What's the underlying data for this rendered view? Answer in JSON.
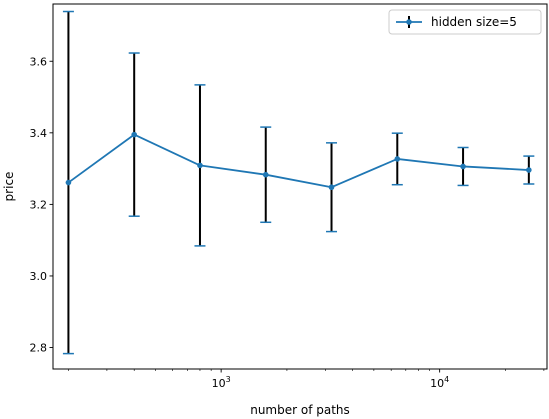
{
  "chart_data": {
    "type": "line",
    "x_scale": "log",
    "xlabel": "number of paths",
    "ylabel": "price",
    "xlim": [
      170,
      31000
    ],
    "ylim": [
      2.74,
      3.76
    ],
    "grid": false,
    "legend_position": "top-right",
    "x_major_ticks": [
      {
        "value": 1000,
        "base": "10",
        "exponent": "3"
      },
      {
        "value": 10000,
        "base": "10",
        "exponent": "4"
      }
    ],
    "y_ticks": [
      "2.8",
      "3.0",
      "3.2",
      "3.4",
      "3.6"
    ],
    "series": [
      {
        "name": "hidden size=5",
        "color": "#1f77b4",
        "error_color": "#000000",
        "x": [
          200,
          400,
          800,
          1600,
          3200,
          6400,
          12800,
          25600
        ],
        "y": [
          3.261,
          3.395,
          3.309,
          3.283,
          3.248,
          3.327,
          3.306,
          3.296
        ],
        "yerr": [
          0.478,
          0.228,
          0.225,
          0.133,
          0.124,
          0.072,
          0.053,
          0.039
        ]
      }
    ]
  }
}
